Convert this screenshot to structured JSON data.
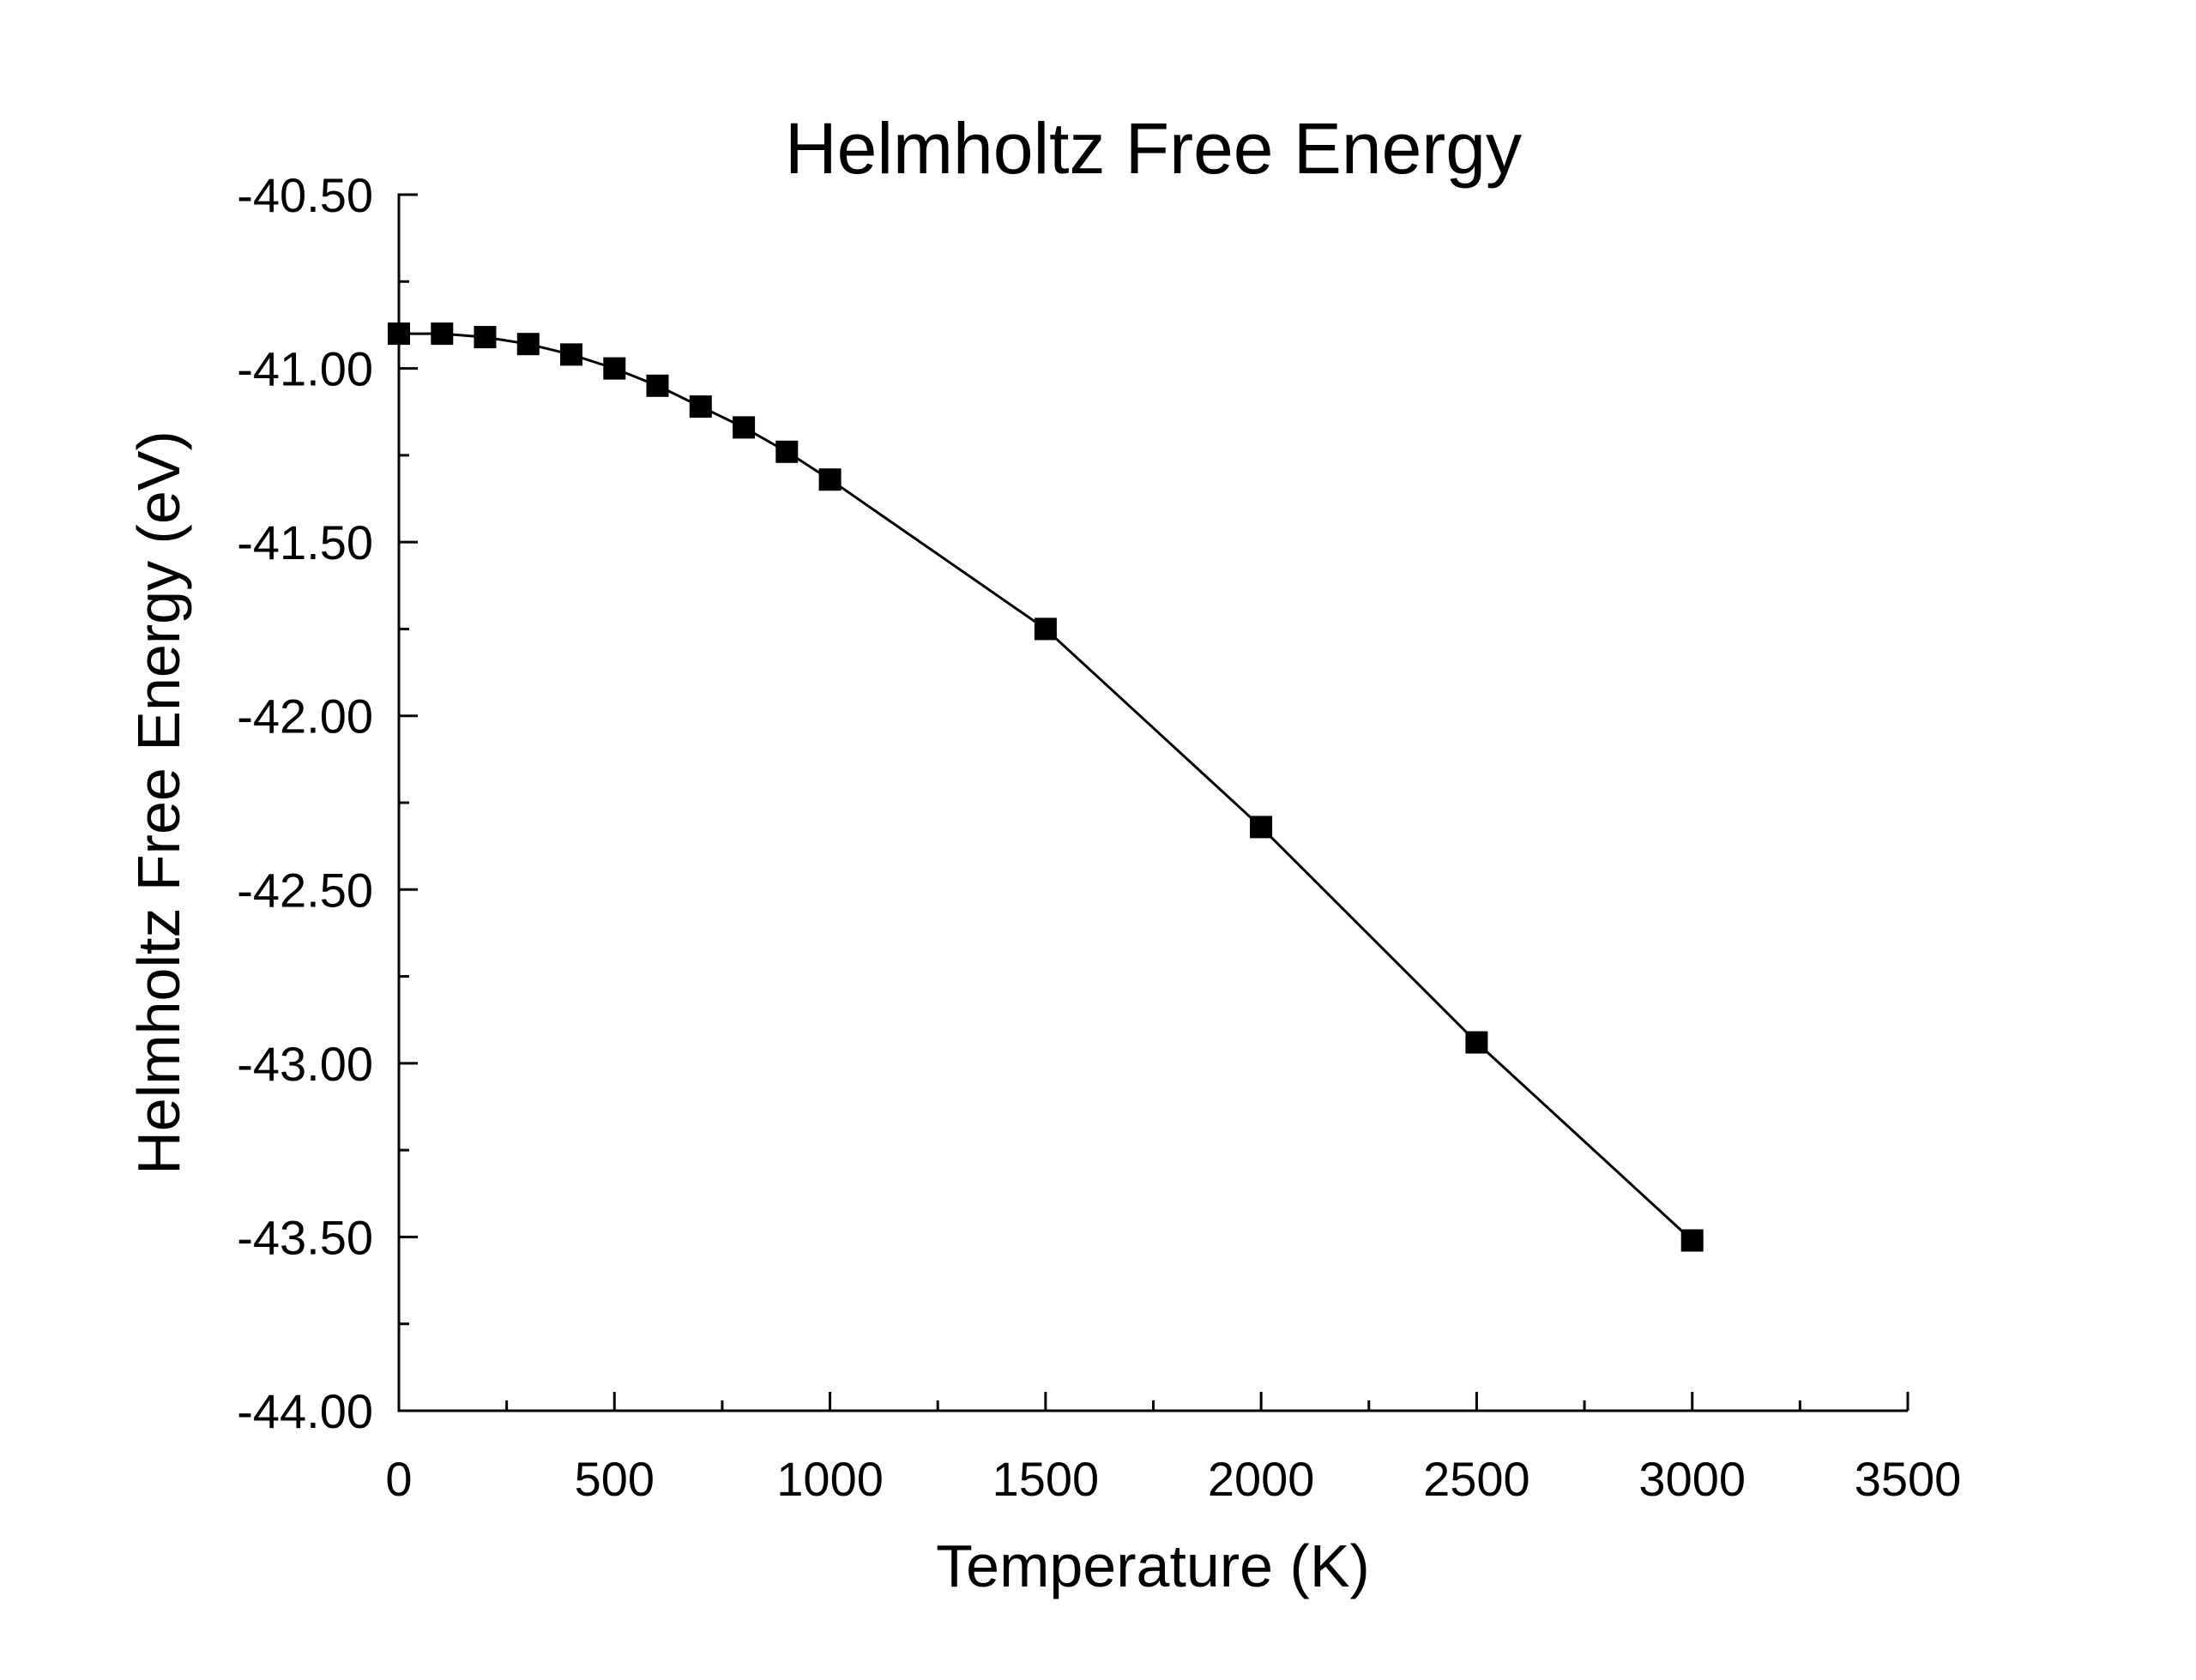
{
  "chart_data": {
    "type": "scatter",
    "title": "Helmholtz Free Energy",
    "xlabel": "Temperature (K)",
    "ylabel": "Helmholtz Free Energy (eV)",
    "xlim": [
      0,
      3500
    ],
    "ylim": [
      -44.0,
      -40.5
    ],
    "xticks": [
      0,
      500,
      1000,
      1500,
      2000,
      2500,
      3000,
      3500
    ],
    "xtick_labels": [
      "0",
      "500",
      "1000",
      "1500",
      "2000",
      "2500",
      "3000",
      "3500"
    ],
    "yticks": [
      -44.0,
      -43.5,
      -43.0,
      -42.5,
      -42.0,
      -41.5,
      -41.0,
      -40.5
    ],
    "ytick_labels": [
      "-44.00",
      "-43.50",
      "-43.00",
      "-42.50",
      "-42.00",
      "-41.50",
      "-41.00",
      "-40.50"
    ],
    "x_minor_step": 250,
    "y_minor_step": 0.25,
    "grid": false,
    "legend": "none",
    "marker": "filled-square",
    "line_style": "solid",
    "line_color": "#000000",
    "marker_color": "#000000",
    "axis_color": "#000000",
    "background_color": "#ffffff",
    "series": [
      {
        "name": "Helmholtz Free Energy",
        "x": [
          0,
          100,
          200,
          300,
          400,
          500,
          600,
          700,
          800,
          900,
          1000,
          1500,
          2000,
          2500,
          3000
        ],
        "y": [
          -40.9,
          -40.9,
          -40.91,
          -40.93,
          -40.96,
          -41.0,
          -41.05,
          -41.11,
          -41.17,
          -41.24,
          -41.32,
          -41.75,
          -42.32,
          -42.94,
          -43.51
        ]
      }
    ]
  }
}
